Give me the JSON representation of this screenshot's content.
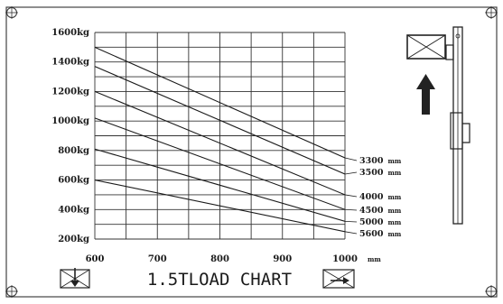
{
  "chart_data": {
    "type": "line",
    "title": "1.5TLOAD CHART",
    "x": [
      600,
      1000
    ],
    "xticks": [
      "600",
      "700",
      "800",
      "900",
      "1000"
    ],
    "xunit": "mm",
    "yticks": [
      "200kg",
      "400kg",
      "600kg",
      "800kg",
      "1000kg",
      "1200kg",
      "1400kg",
      "1600kg"
    ],
    "xlim": [
      600,
      1000
    ],
    "ylim": [
      200,
      1600
    ],
    "grid": true,
    "series": [
      {
        "name": "3300",
        "unit": "mm",
        "values": [
          1500,
          750
        ]
      },
      {
        "name": "3500",
        "unit": "mm",
        "values": [
          1370,
          640
        ]
      },
      {
        "name": "4000",
        "unit": "mm",
        "values": [
          1200,
          500
        ]
      },
      {
        "name": "4500",
        "unit": "mm",
        "values": [
          1020,
          400
        ]
      },
      {
        "name": "5000",
        "unit": "mm",
        "values": [
          810,
          320
        ]
      },
      {
        "name": "5600",
        "unit": "mm",
        "values": [
          600,
          250
        ]
      }
    ]
  },
  "colors": {
    "line": "#1a1a1a",
    "grid": "#333333",
    "border": "#444444"
  },
  "icons": [
    "corner-screw-icon",
    "mast-side-view-icon",
    "lift-up-arrow-icon",
    "load-box-icon"
  ]
}
